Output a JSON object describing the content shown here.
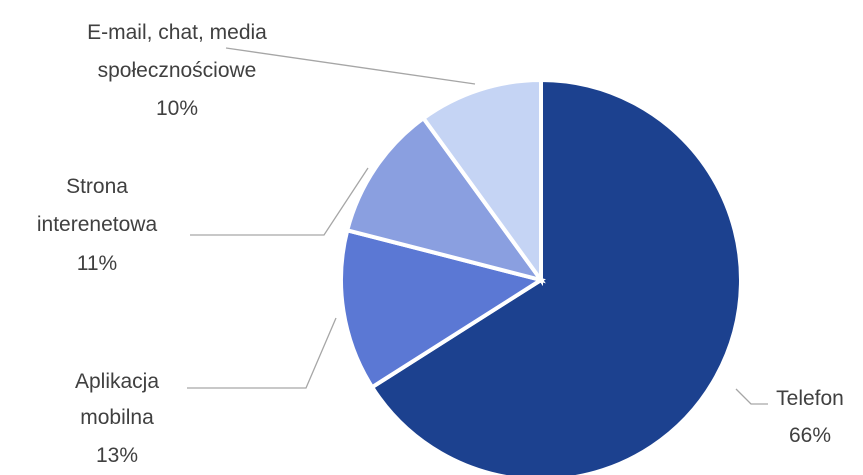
{
  "chart_data": {
    "type": "pie",
    "title": "",
    "slices": [
      {
        "label_lines": [
          "Telefon"
        ],
        "value_label": "66%",
        "value": 66,
        "color": "#1c418f"
      },
      {
        "label_lines": [
          "Aplikacja",
          "mobilna"
        ],
        "value_label": "13%",
        "value": 13,
        "color": "#5b78d4"
      },
      {
        "label_lines": [
          "Strona",
          "interenetowa"
        ],
        "value_label": "11%",
        "value": 11,
        "color": "#8a9fe0"
      },
      {
        "label_lines": [
          "E-mail, chat, media",
          "społecznościowe"
        ],
        "value_label": "10%",
        "value": 10,
        "color": "#c5d4f4"
      }
    ],
    "legend": "none"
  }
}
